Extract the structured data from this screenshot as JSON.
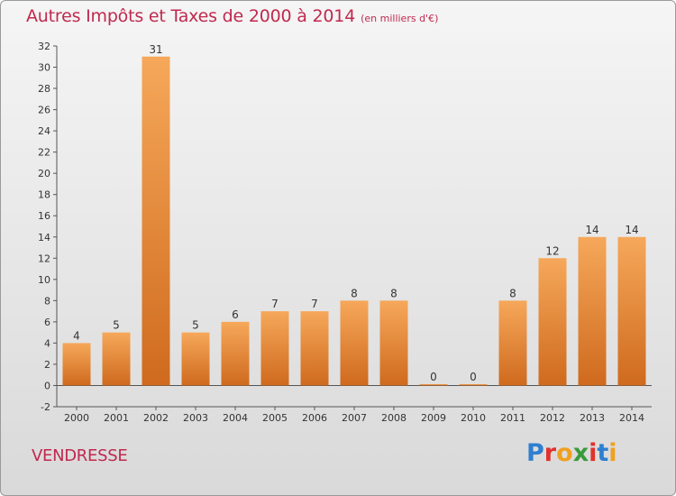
{
  "header": {
    "title": "Autres Impôts et Taxes de 2000 à 2014",
    "unit": "(en milliers d'€)"
  },
  "footer": {
    "commune": "VENDRESSE",
    "brand": "Proxiti",
    "brand_colors": [
      "#2f7fd0",
      "#e0322d",
      "#f0a020",
      "#3a9a3a",
      "#e0322d",
      "#2f7fd0",
      "#f0a020"
    ]
  },
  "colors": {
    "bar_light": "#f6a85a",
    "bar_dark": "#cf6a1e",
    "text": "#333333",
    "title": "#c0294f"
  },
  "chart_data": {
    "type": "bar",
    "title": "Autres Impôts et Taxes de 2000 à 2014",
    "ylabel": "",
    "xlabel": "",
    "categories": [
      "2000",
      "2001",
      "2002",
      "2003",
      "2004",
      "2005",
      "2006",
      "2007",
      "2008",
      "2009",
      "2010",
      "2011",
      "2012",
      "2013",
      "2014"
    ],
    "values": [
      4,
      5,
      31,
      5,
      6,
      7,
      7,
      8,
      8,
      0,
      0,
      8,
      12,
      14,
      14
    ],
    "ylim": [
      -2,
      32
    ],
    "yticks": [
      -2,
      0,
      2,
      4,
      6,
      8,
      10,
      12,
      14,
      16,
      18,
      20,
      22,
      24,
      26,
      28,
      30,
      32
    ],
    "grid": false,
    "legend": "none"
  }
}
